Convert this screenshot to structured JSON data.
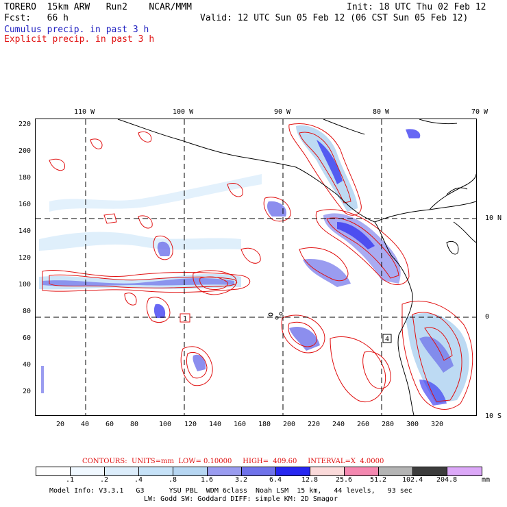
{
  "header": {
    "model": "TORERO  15km ARW   Run2    NCAR/MMM",
    "init": "Init: 18 UTC Thu 02 Feb 12",
    "fcst": "Fcst:   66 h",
    "valid": "Valid: 12 UTC Sun 05 Feb 12 (06 CST Sun 05 Feb 12)",
    "field_cumulus": "Cumulus precip. in past 3 h",
    "field_explicit": "Explicit precip. in past 3 h"
  },
  "colors": {
    "cumulus": "#2020c0",
    "explicit": "#e01010",
    "grid": "#000000"
  },
  "map": {
    "top_lon_labels": [
      "110 W",
      "100 W",
      "90 W",
      "80 W",
      "70 W"
    ],
    "right_lat_labels": [
      "10 N",
      "0",
      "10 S"
    ],
    "left_y_labels": [
      "220",
      "200",
      "180",
      "160",
      "140",
      "120",
      "100",
      "80",
      "60",
      "40",
      "20"
    ],
    "bottom_x_labels": [
      "20",
      "40",
      "60",
      "80",
      "100",
      "120",
      "140",
      "160",
      "180",
      "200",
      "220",
      "240",
      "260",
      "280",
      "300",
      "320"
    ],
    "grid_lon": [
      -110,
      -100,
      -90,
      -80
    ],
    "grid_lat": [
      10,
      0
    ],
    "station_labels": [
      "1",
      "4"
    ]
  },
  "legend": {
    "contours": "CONTOURS:  UNITS=mm  LOW= 0.10000     HIGH=  409.60     INTERVAL=X  4.0000",
    "units": "mm",
    "levels": [
      ".1",
      ".2",
      ".4",
      ".8",
      "1.6",
      "3.2",
      "6.4",
      "12.8",
      "25.6",
      "51.2",
      "102.4",
      "204.8"
    ],
    "bins": [
      {
        "color": "#ffffff"
      },
      {
        "color": "#f0f8ff"
      },
      {
        "color": "#dcedfb"
      },
      {
        "color": "#c6e2f8"
      },
      {
        "color": "#b6d6f2"
      },
      {
        "color": "#9a9cf0"
      },
      {
        "color": "#6f72ea"
      },
      {
        "color": "#2626f0"
      },
      {
        "color": "#fbdada"
      },
      {
        "color": "#f488b0"
      },
      {
        "color": "#b4b4b4"
      },
      {
        "color": "#3c3c3c"
      },
      {
        "color": "#dca8f8"
      }
    ]
  },
  "footer": {
    "line1": "Model Info: V3.3.1   G3      YSU PBL  WDM 6class  Noah LSM  15 km,   44 levels,   93 sec",
    "line2": "LW: Godd SW: Goddard DIFF: simple KM: 2D Smagor"
  }
}
